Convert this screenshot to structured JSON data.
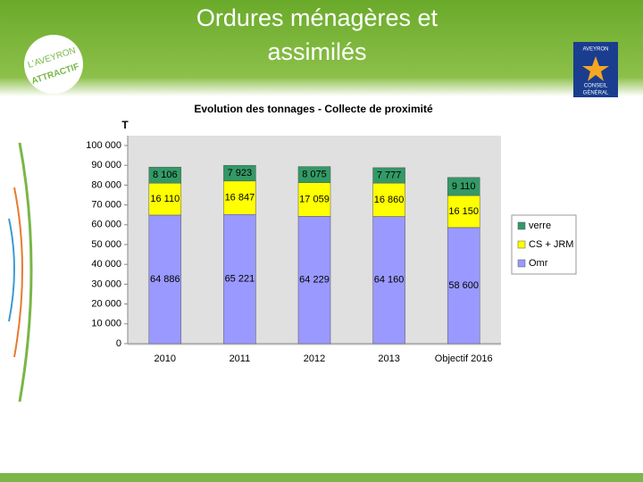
{
  "header": {
    "title_line1": "Ordures ménagères et",
    "title_line2": "assimilés",
    "logo_left_top": "L'AVEYRON",
    "logo_left_bottom": "ATTRACTIF",
    "logo_right_top": "AVEYRON",
    "logo_right_mid": "CONSEIL",
    "logo_right_bottom": "GÉNÉRAL"
  },
  "chart_data": {
    "type": "bar",
    "stacked": true,
    "title": "Evolution des tonnages - Collecte de proximité",
    "y_label": "T",
    "categories": [
      "2010",
      "2011",
      "2012",
      "2013",
      "Objectif 2016"
    ],
    "series": [
      {
        "name": "Omr",
        "color": "#9999ff",
        "values": [
          64886,
          65221,
          64229,
          64160,
          58600
        ],
        "value_labels": [
          "64 886",
          "65 221",
          "64 229",
          "64 160",
          "58 600"
        ]
      },
      {
        "name": "CS + JRM",
        "color": "#ffff00",
        "values": [
          16110,
          16847,
          17059,
          16860,
          16150
        ],
        "value_labels": [
          "16 110",
          "16 847",
          "17 059",
          "16 860",
          "16 150"
        ]
      },
      {
        "name": "verre",
        "color": "#339966",
        "values": [
          8106,
          7923,
          8075,
          7777,
          9110
        ],
        "value_labels": [
          "8 106",
          "7 923",
          "8 075",
          "7 777",
          "9 110"
        ]
      }
    ],
    "ylim": [
      0,
      100000
    ],
    "yticks": [
      0,
      {
        "value": 10000,
        "label": "10 000"
      },
      {
        "value": 20000,
        "label": "20 000"
      },
      {
        "value": 30000,
        "label": "30 000"
      },
      {
        "value": 40000,
        "label": "40 000"
      },
      {
        "value": 50000,
        "label": "50 000"
      },
      {
        "value": 60000,
        "label": "60 000"
      },
      {
        "value": 70000,
        "label": "70 000"
      },
      {
        "value": 80000,
        "label": "80 000"
      },
      {
        "value": 90000,
        "label": "90 000"
      },
      {
        "value": 100000,
        "label": "100 000"
      }
    ],
    "legend": "right"
  }
}
